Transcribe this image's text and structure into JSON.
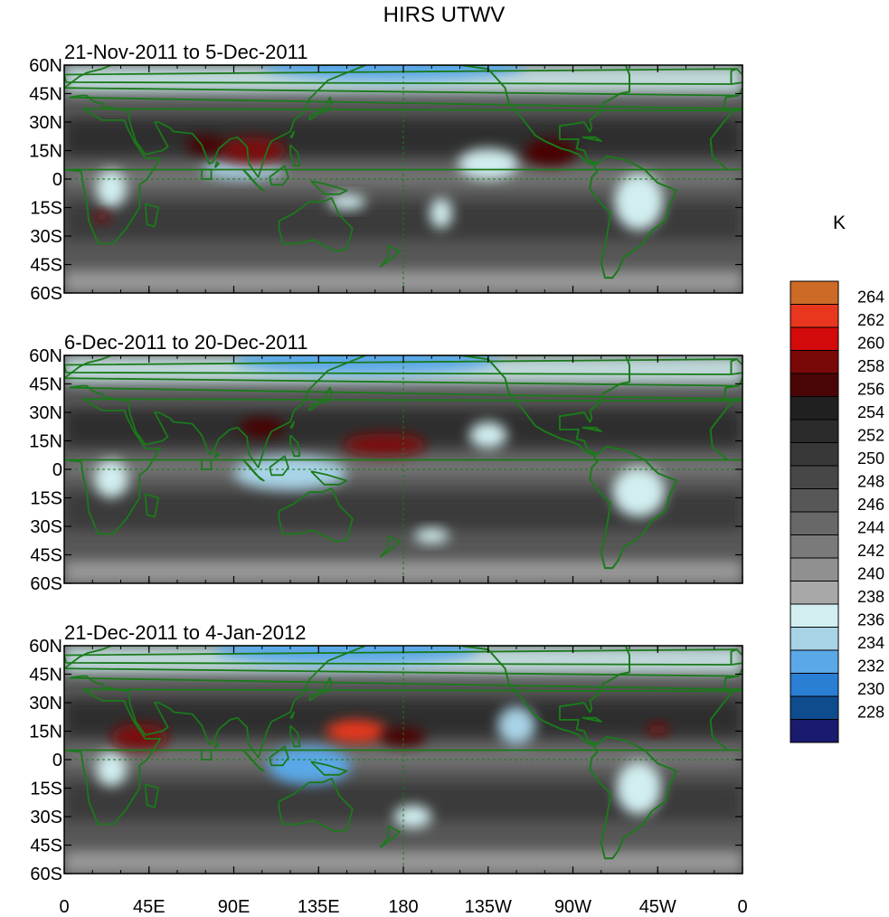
{
  "title": "HIRS UTWV",
  "panels": [
    {
      "subtitle": "21-Nov-2011 to 5-Dec-2011",
      "warm_spots": [
        {
          "lon": 100,
          "lat": 15,
          "sx": 18,
          "sy": 7,
          "value": 258
        },
        {
          "lon": 75,
          "lat": 18,
          "sx": 10,
          "sy": 5,
          "value": 256
        },
        {
          "lon": 258,
          "lat": 14,
          "sx": 14,
          "sy": 7,
          "value": 256
        },
        {
          "lon": 20,
          "lat": -20,
          "sx": 4,
          "sy": 3,
          "value": 258
        }
      ],
      "moist_spots": [
        {
          "lon": 225,
          "lat": 8,
          "sx": 16,
          "sy": 8,
          "value": 236
        },
        {
          "lon": 200,
          "lat": -18,
          "sx": 6,
          "sy": 8,
          "value": 236
        },
        {
          "lon": 305,
          "lat": -12,
          "sx": 13,
          "sy": 15,
          "value": 236
        },
        {
          "lon": 25,
          "lat": -5,
          "sx": 8,
          "sy": 10,
          "value": 236
        },
        {
          "lon": 95,
          "lat": 5,
          "sx": 22,
          "sy": 5,
          "value": 234
        },
        {
          "lon": 150,
          "lat": -12,
          "sx": 10,
          "sy": 4,
          "value": 236
        },
        {
          "lon": 175,
          "lat": 60,
          "sx": 70,
          "sy": 8,
          "value": 232
        }
      ]
    },
    {
      "subtitle": "6-Dec-2011 to 20-Dec-2011",
      "warm_spots": [
        {
          "lon": 170,
          "lat": 13,
          "sx": 22,
          "sy": 6,
          "value": 258
        },
        {
          "lon": 105,
          "lat": 22,
          "sx": 12,
          "sy": 5,
          "value": 256
        }
      ],
      "moist_spots": [
        {
          "lon": 120,
          "lat": -2,
          "sx": 30,
          "sy": 9,
          "value": 234
        },
        {
          "lon": 225,
          "lat": 18,
          "sx": 10,
          "sy": 7,
          "value": 236
        },
        {
          "lon": 305,
          "lat": -12,
          "sx": 14,
          "sy": 13,
          "value": 236
        },
        {
          "lon": 25,
          "lat": -5,
          "sx": 9,
          "sy": 10,
          "value": 236
        },
        {
          "lon": 195,
          "lat": -35,
          "sx": 9,
          "sy": 4,
          "value": 236
        },
        {
          "lon": 160,
          "lat": 58,
          "sx": 70,
          "sy": 8,
          "value": 232
        }
      ]
    },
    {
      "subtitle": "21-Dec-2011 to 4-Jan-2012",
      "warm_spots": [
        {
          "lon": 155,
          "lat": 15,
          "sx": 16,
          "sy": 6,
          "value": 262
        },
        {
          "lon": 40,
          "lat": 12,
          "sx": 15,
          "sy": 7,
          "value": 258
        },
        {
          "lon": 180,
          "lat": 12,
          "sx": 12,
          "sy": 5,
          "value": 256
        },
        {
          "lon": 315,
          "lat": 16,
          "sx": 6,
          "sy": 3,
          "value": 258
        }
      ],
      "moist_spots": [
        {
          "lon": 130,
          "lat": -3,
          "sx": 22,
          "sy": 10,
          "value": 232
        },
        {
          "lon": 240,
          "lat": 18,
          "sx": 10,
          "sy": 10,
          "value": 234
        },
        {
          "lon": 305,
          "lat": -15,
          "sx": 12,
          "sy": 14,
          "value": 236
        },
        {
          "lon": 25,
          "lat": -5,
          "sx": 8,
          "sy": 9,
          "value": 236
        },
        {
          "lon": 185,
          "lat": -30,
          "sx": 10,
          "sy": 6,
          "value": 236
        },
        {
          "lon": 150,
          "lat": 58,
          "sx": 70,
          "sy": 8,
          "value": 232
        }
      ]
    }
  ],
  "lat_ticks": [
    "60N",
    "45N",
    "30N",
    "15N",
    "0",
    "15S",
    "30S",
    "45S",
    "60S"
  ],
  "lon_ticks": [
    "0",
    "45E",
    "90E",
    "135E",
    "180",
    "135W",
    "90W",
    "45W",
    "0"
  ],
  "colorbar": {
    "unit": "K",
    "labels": [
      "264",
      "262",
      "260",
      "258",
      "256",
      "254",
      "252",
      "250",
      "248",
      "246",
      "244",
      "242",
      "240",
      "238",
      "236",
      "234",
      "232",
      "230",
      "228"
    ],
    "colors": [
      "#cc6a26",
      "#e8371e",
      "#d40a0a",
      "#7a0808",
      "#4a0606",
      "#202020",
      "#2b2b2b",
      "#383838",
      "#474747",
      "#575757",
      "#686868",
      "#7a7a7a",
      "#909090",
      "#a8a8a8",
      "#d2eef0",
      "#a8d3e6",
      "#5aa8e8",
      "#2a7ed4",
      "#0f4c8e",
      "#1a1a6e"
    ]
  },
  "land_color": "#1a7a1a"
}
